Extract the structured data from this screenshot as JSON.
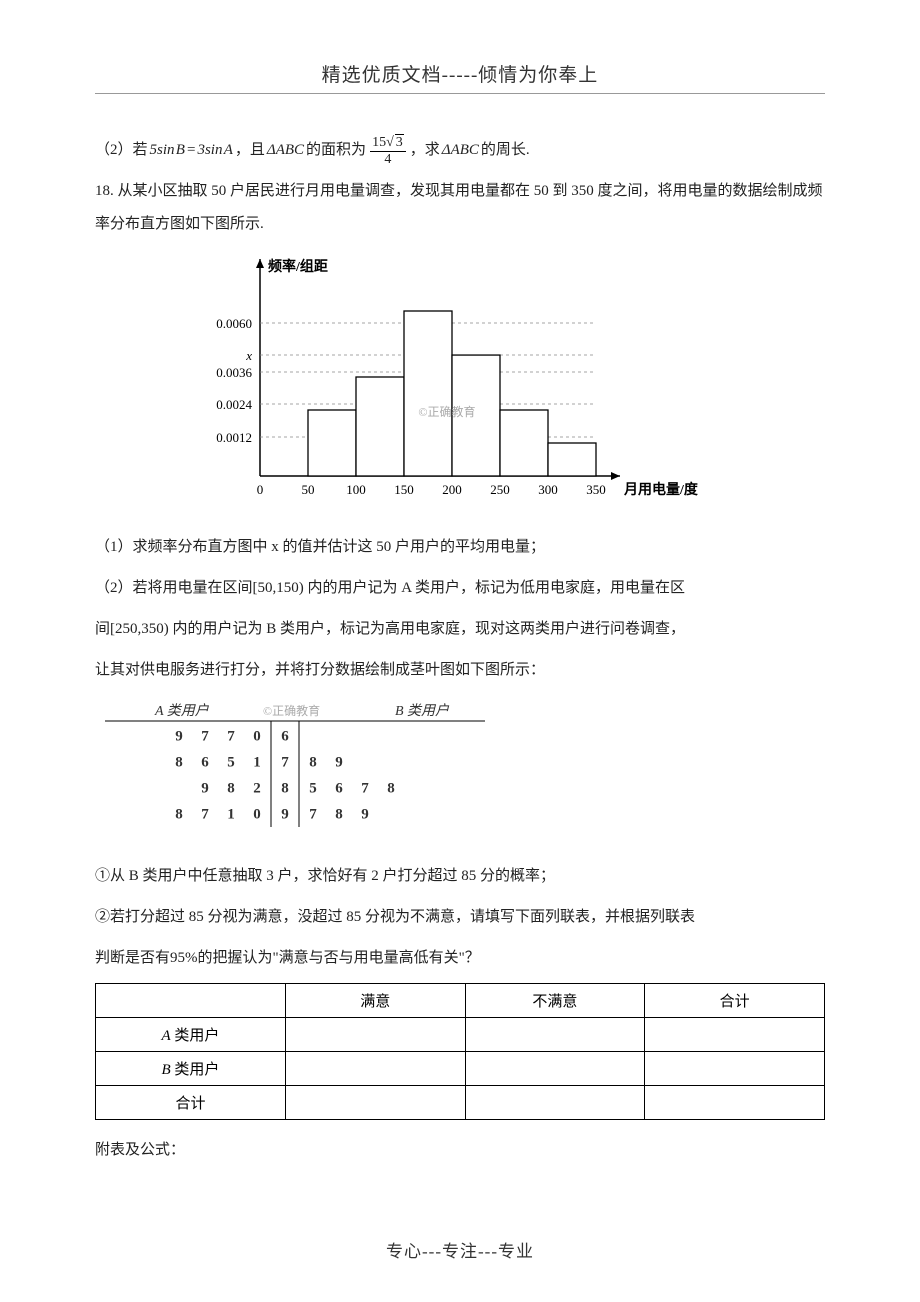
{
  "header": {
    "title": "精选优质文档-----倾情为你奉上"
  },
  "q17_part2": {
    "prefix": "（2）若",
    "eq1_lhs_coef": "5sin",
    "eq1_lhs_var": "B",
    "eq1_eq": " = ",
    "eq1_rhs_coef": "3sin",
    "eq1_rhs_var": "A",
    "mid1": "，且",
    "tri1": "ΔABC",
    "mid2": "的面积为",
    "frac_num_a": "15",
    "frac_num_b": "3",
    "frac_den": "4",
    "mid3": "，求",
    "tri2": "ΔABC",
    "suffix": "的周长."
  },
  "q18": {
    "intro": "18. 从某小区抽取 50 户居民进行月用电量调查，发现其用电量都在 50 到 350 度之间，将用电量的数据绘制成频率分布直方图如下图所示."
  },
  "histogram": {
    "ylabel": "频率/组距",
    "xlabel": "月用电量/度",
    "watermark": "©正确教育",
    "yticks": [
      "0.0060",
      "x",
      "0.0036",
      "0.0024",
      "0.0012"
    ],
    "ytick_positions": [
      12,
      44,
      61,
      93,
      126
    ],
    "xticks": [
      "0",
      "50",
      "100",
      "150",
      "200",
      "250",
      "300",
      "350"
    ],
    "bars": [
      {
        "x_start": 50,
        "x_end": 100,
        "height_ratio": 0.4
      },
      {
        "x_start": 100,
        "x_end": 150,
        "height_ratio": 0.6
      },
      {
        "x_start": 150,
        "x_end": 200,
        "height_ratio": 1.0
      },
      {
        "x_start": 200,
        "x_end": 250,
        "height_ratio": 0.733
      },
      {
        "x_start": 250,
        "x_end": 300,
        "height_ratio": 0.4
      },
      {
        "x_start": 300,
        "x_end": 350,
        "height_ratio": 0.2
      }
    ],
    "axis_color": "#000000",
    "bar_fill": "#ffffff",
    "bar_stroke": "#000000",
    "grid_color": "#888888"
  },
  "q18_1": "（1）求频率分布直方图中 x 的值并估计这 50 户用户的平均用电量；",
  "q18_2a": "（2）若将用电量在区间[50,150) 内的用户记为 A 类用户，标记为低用电家庭，用电量在区",
  "q18_2b": "间[250,350) 内的用户记为 B 类用户，标记为高用电家庭，现对这两类用户进行问卷调查，",
  "q18_2c": "让其对供电服务进行打分，并将打分数据绘制成茎叶图如下图所示：",
  "stemleaf": {
    "left_label": "A 类用户",
    "center_label": "©正确教育",
    "right_label": "B 类用户",
    "rows": [
      {
        "left": [
          "9",
          "7",
          "7",
          "0"
        ],
        "stem": "6",
        "right": []
      },
      {
        "left": [
          "8",
          "6",
          "5",
          "1"
        ],
        "stem": "7",
        "right": [
          "8",
          "9"
        ]
      },
      {
        "left": [
          "9",
          "8",
          "2"
        ],
        "stem": "8",
        "right": [
          "5",
          "6",
          "7",
          "8"
        ]
      },
      {
        "left": [
          "8",
          "7",
          "1",
          "0"
        ],
        "stem": "9",
        "right": [
          "7",
          "8",
          "9"
        ]
      }
    ],
    "text_color": "#333333",
    "line_color": "#000000"
  },
  "q18_sub1": "①从 B 类用户中任意抽取 3 户，求恰好有 2 户打分超过 85 分的概率；",
  "q18_sub2a": "②若打分超过 85 分视为满意，没超过 85 分视为不满意，请填写下面列联表，并根据列联表",
  "q18_sub2b": "判断是否有95%的把握认为\"满意与否与用电量高低有关\"？",
  "contingency": {
    "headers": [
      "",
      "满意",
      "不满意",
      "合计"
    ],
    "rows": [
      [
        "A 类用户",
        "",
        "",
        ""
      ],
      [
        "B 类用户",
        "",
        "",
        ""
      ],
      [
        "合计",
        "",
        "",
        ""
      ]
    ]
  },
  "appendix": "附表及公式：",
  "footer": "专心---专注---专业"
}
